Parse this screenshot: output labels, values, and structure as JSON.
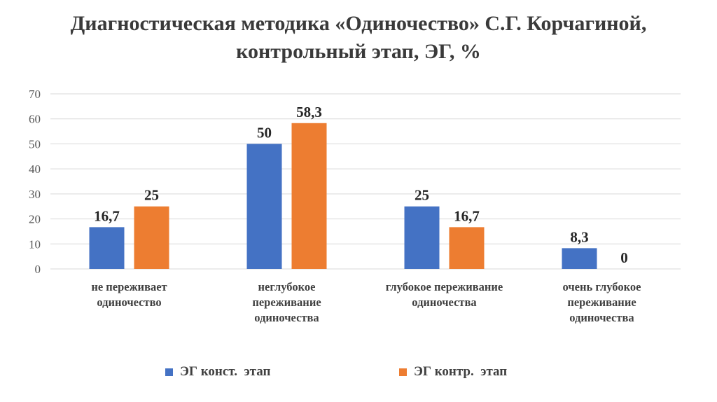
{
  "title_lines": [
    "Диагностическая методика «Одиночество» С.Г. Корчагиной,",
    "контрольный этап, ЭГ, %"
  ],
  "colors": {
    "series1": "#4472C4",
    "series2": "#ED7D31",
    "grid": "#D9D9D9"
  },
  "chart_data": {
    "type": "bar",
    "title": "Диагностическая методика «Одиночество» С.Г. Корчагиной, контрольный этап, ЭГ, %",
    "categories": [
      [
        "не переживает",
        "одиночество"
      ],
      [
        "неглубокое",
        "переживание",
        "одиночества"
      ],
      [
        "глубокое переживание",
        "одиночества"
      ],
      [
        "очень глубокое",
        "переживание",
        "одиночества"
      ]
    ],
    "series": [
      {
        "name": "ЭГ конст.  этап",
        "values": [
          16.7,
          50,
          25,
          8.3
        ],
        "labels": [
          "16,7",
          "50",
          "25",
          "8,3"
        ]
      },
      {
        "name": "ЭГ контр.  этап",
        "values": [
          25,
          58.3,
          16.7,
          0
        ],
        "labels": [
          "25",
          "58,3",
          "16,7",
          "0"
        ]
      }
    ],
    "ylim": [
      0,
      70
    ],
    "yticks": [
      0,
      10,
      20,
      30,
      40,
      50,
      60,
      70
    ],
    "grid": true,
    "legend": "bottom-center"
  }
}
